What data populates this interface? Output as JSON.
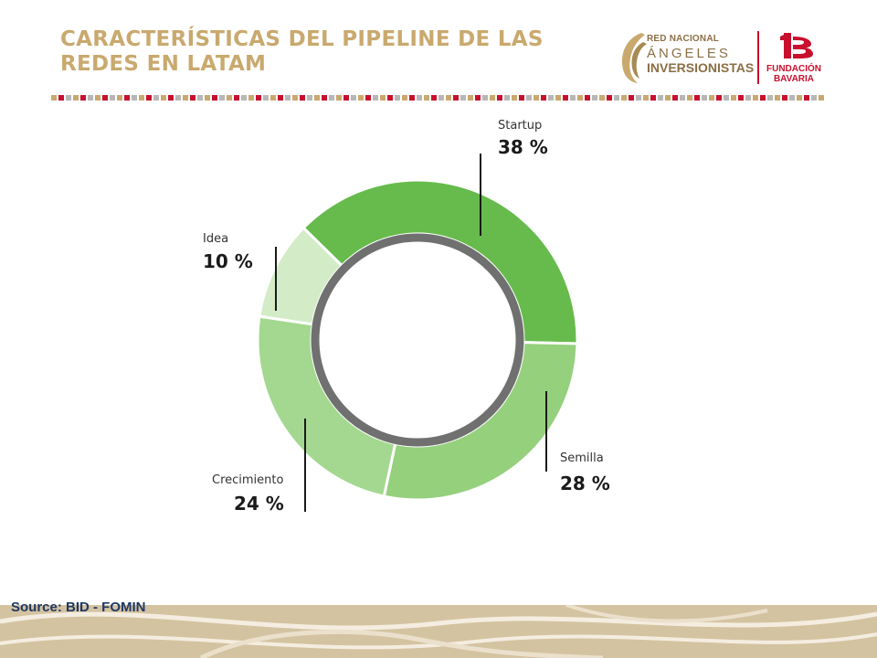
{
  "header": {
    "title_line1": "CARACTERÍSTICAS DEL PIPELINE DE LAS",
    "title_line2": "REDES EN LATAM"
  },
  "logos": {
    "rna_line1": "RED NACIONAL",
    "rna_line2": "ÁNGELES",
    "rna_line3": "INVERSIONISTAS",
    "fb_line1": "FUNDACIÓN",
    "fb_line2": "BAVARIA"
  },
  "source": "Source: BID - FOMIN",
  "colors": {
    "title": "#c9a96e",
    "brand_red": "#c8102e",
    "source_text": "#1f3864"
  },
  "chart_data": {
    "type": "pie",
    "donut": true,
    "categories": [
      "Startup",
      "Semilla",
      "Crecimiento",
      "Idea"
    ],
    "values": [
      38,
      28,
      24,
      10
    ],
    "value_labels": [
      "38 %",
      "28 %",
      "24 %",
      "10 %"
    ],
    "colors": [
      "#66bb4c",
      "#95d07d",
      "#a4d890",
      "#d3ecc7"
    ],
    "inner_ring_color": "#707070"
  }
}
